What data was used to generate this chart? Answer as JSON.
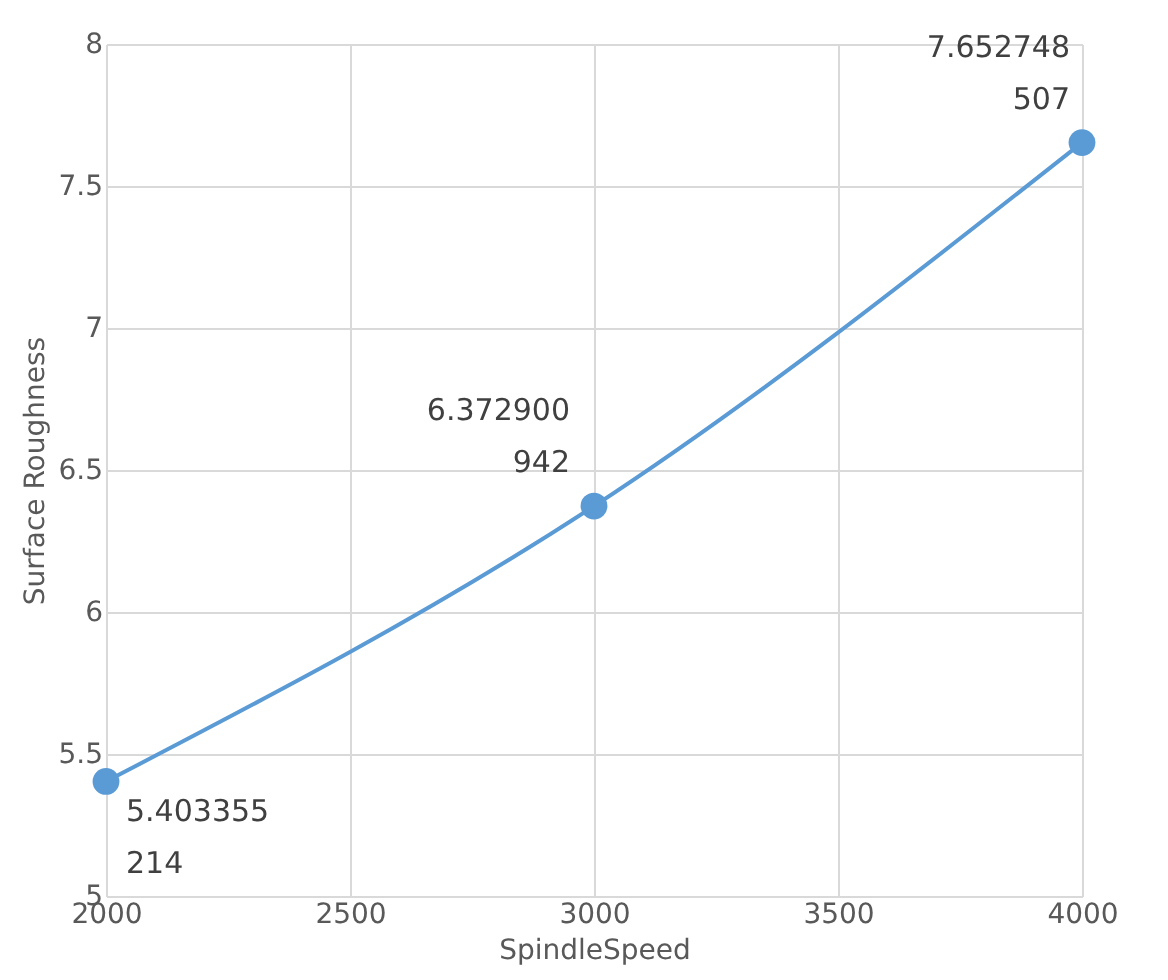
{
  "chart_data": {
    "type": "line",
    "xlabel": "SpindleSpeed",
    "ylabel": "Surface Roughness",
    "x": [
      2000,
      3000,
      4000
    ],
    "series": [
      {
        "color": "#5b9bd5",
        "values": [
          5.403355214,
          6.372900942,
          7.652748507
        ],
        "value_labels": [
          "5.403355214",
          "6.372900942",
          "7.652748507"
        ]
      }
    ],
    "xlim": [
      2000,
      4000
    ],
    "xticks": [
      2000,
      2500,
      3000,
      3500,
      4000
    ],
    "ylim": [
      5,
      8
    ],
    "yticks": [
      5,
      5.5,
      6,
      6.5,
      7,
      7.5,
      8
    ],
    "grid": true,
    "marker": "circle",
    "line_style": "solid"
  }
}
